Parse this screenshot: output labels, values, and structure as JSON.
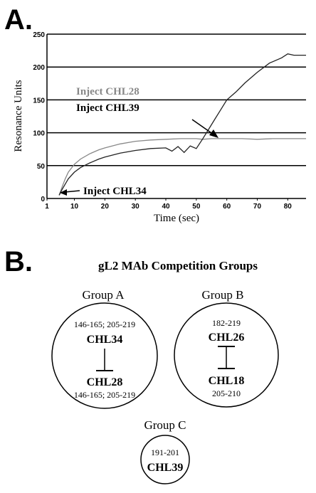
{
  "panelA": {
    "letter": "A.",
    "chart_data": {
      "type": "line",
      "xlabel": "Time (sec)",
      "ylabel": "Resonance Units",
      "xlim": [
        1,
        86
      ],
      "ylim": [
        0,
        250
      ],
      "x_ticks": [
        1,
        10,
        20,
        30,
        40,
        50,
        60,
        70,
        80
      ],
      "x_tick_labels": [
        "1",
        "10",
        "20",
        "30",
        "40",
        "50",
        "60",
        "70",
        "80"
      ],
      "y_ticks": [
        0,
        50,
        100,
        150,
        200,
        250
      ],
      "y_tick_labels": [
        "0",
        "50",
        "100",
        "150",
        "200",
        "250"
      ],
      "grid": "horizontal",
      "series": [
        {
          "color": "#888888",
          "x": [
            5,
            6,
            7,
            8,
            10,
            12,
            15,
            18,
            20,
            25,
            30,
            35,
            40,
            45,
            50,
            52,
            55,
            60,
            65,
            70,
            75,
            80,
            86
          ],
          "y": [
            5,
            18,
            30,
            40,
            52,
            60,
            68,
            74,
            77,
            83,
            87,
            89,
            90,
            91,
            91,
            90,
            91,
            91,
            91,
            90,
            91,
            91,
            91
          ]
        },
        {
          "color": "#222222",
          "x": [
            5,
            6,
            7,
            8,
            10,
            12,
            15,
            18,
            20,
            25,
            30,
            35,
            40,
            42,
            44,
            46,
            48,
            50,
            52,
            54,
            56,
            58,
            60,
            63,
            66,
            70,
            74,
            78,
            80,
            82,
            86
          ],
          "y": [
            5,
            14,
            22,
            30,
            40,
            47,
            54,
            60,
            63,
            69,
            73,
            76,
            77,
            72,
            79,
            70,
            80,
            76,
            90,
            105,
            120,
            135,
            150,
            162,
            176,
            192,
            206,
            214,
            220,
            218,
            218
          ]
        }
      ],
      "annotations": [
        {
          "text": "Inject CHL28",
          "color": "#888888"
        },
        {
          "text": "Inject CHL39",
          "color": "#000000"
        },
        {
          "text": "Inject CHL34",
          "color": "#000000"
        }
      ]
    }
  },
  "panelB": {
    "letter": "B.",
    "title": "gL2 MAb Competition Groups",
    "groups": [
      {
        "label": "Group A",
        "top_range": "146-165; 205-219",
        "top_mab": "CHL34",
        "bottom_mab": "CHL28",
        "bottom_range": "146-165; 205-219"
      },
      {
        "label": "Group B",
        "top_range": "182-219",
        "top_mab": "CHL26",
        "bottom_mab": "CHL18",
        "bottom_range": "205-210"
      },
      {
        "label": "Group C",
        "range": "191-201",
        "mab": "CHL39"
      }
    ]
  }
}
